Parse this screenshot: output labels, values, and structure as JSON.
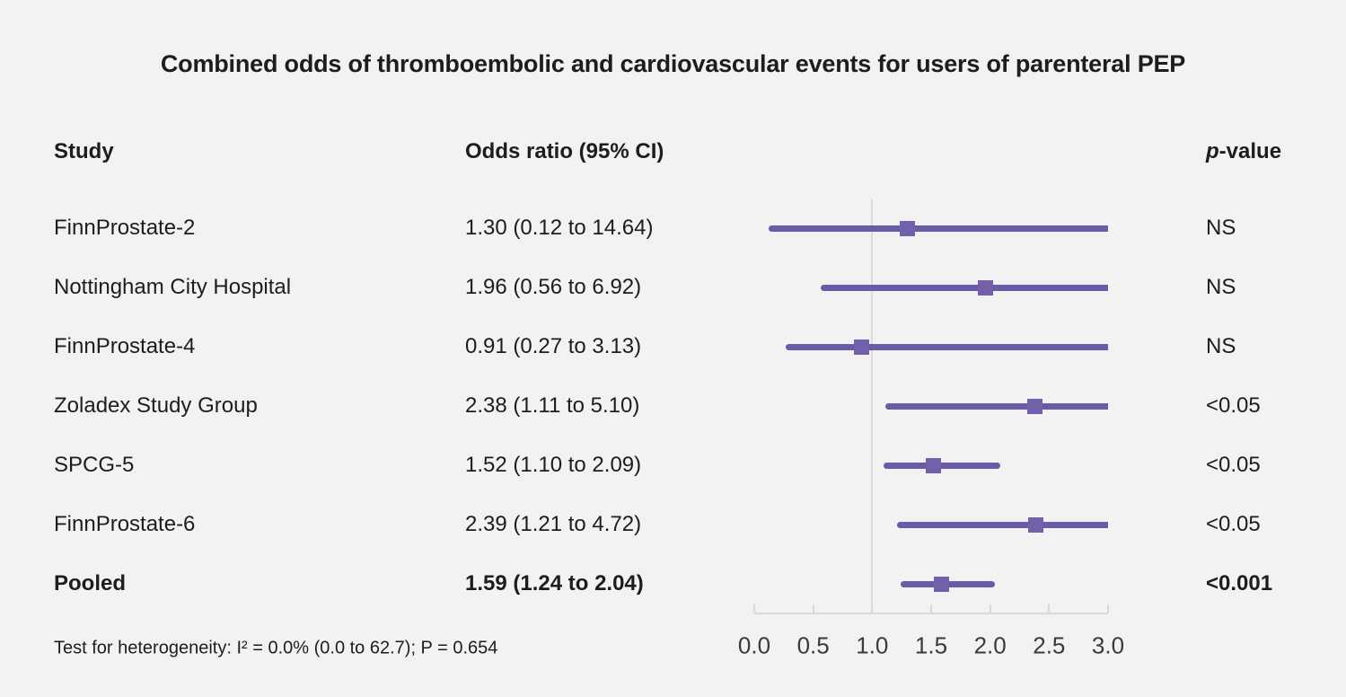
{
  "title": "Combined odds of thromboembolic and cardiovascular events for users of parenteral PEP",
  "columns": {
    "study": "Study",
    "odds_ratio": "Odds ratio (95% CI)",
    "p_prefix": "p",
    "p_suffix": "-value"
  },
  "footnote": "Test for heterogeneity: I² = 0.0% (0.0 to 62.7); P = 0.654",
  "colors": {
    "background": "#f2f2f2",
    "text": "#1d1d1d",
    "ci_line": "#6b5aa5",
    "marker": "#7260ab",
    "axis": "#d9d9d9",
    "reference_line": "#d8dbe0"
  },
  "chart_data": {
    "type": "forest",
    "title": "Combined odds of thromboembolic and cardiovascular events for users of parenteral PEP",
    "xlim": [
      0.0,
      3.0
    ],
    "x_ticks": [
      0.0,
      0.5,
      1.0,
      1.5,
      2.0,
      2.5,
      3.0
    ],
    "x_tick_labels": [
      "0.0",
      "0.5",
      "1.0",
      "1.5",
      "2.0",
      "2.5",
      "3.0"
    ],
    "reference_value": 1.0,
    "legend": "none",
    "grid": "off",
    "rows": [
      {
        "study": "FinnProstate-2",
        "or": 1.3,
        "ci_low": 0.12,
        "ci_high": 14.64,
        "or_label": "1.30 (0.12 to 14.64)",
        "p_value": "NS",
        "bold": false
      },
      {
        "study": "Nottingham City Hospital",
        "or": 1.96,
        "ci_low": 0.56,
        "ci_high": 6.92,
        "or_label": "1.96 (0.56 to 6.92)",
        "p_value": "NS",
        "bold": false
      },
      {
        "study": "FinnProstate-4",
        "or": 0.91,
        "ci_low": 0.27,
        "ci_high": 3.13,
        "or_label": "0.91 (0.27 to 3.13)",
        "p_value": "NS",
        "bold": false
      },
      {
        "study": "Zoladex Study Group",
        "or": 2.38,
        "ci_low": 1.11,
        "ci_high": 5.1,
        "or_label": "2.38 (1.11 to 5.10)",
        "p_value": "<0.05",
        "bold": false
      },
      {
        "study": "SPCG-5",
        "or": 1.52,
        "ci_low": 1.1,
        "ci_high": 2.09,
        "or_label": "1.52 (1.10 to 2.09)",
        "p_value": "<0.05",
        "bold": false
      },
      {
        "study": "FinnProstate-6",
        "or": 2.39,
        "ci_low": 1.21,
        "ci_high": 4.72,
        "or_label": "2.39 (1.21 to 4.72)",
        "p_value": "<0.05",
        "bold": false
      },
      {
        "study": "Pooled",
        "or": 1.59,
        "ci_low": 1.24,
        "ci_high": 2.04,
        "or_label": "1.59 (1.24 to 2.04)",
        "p_value": "<0.001",
        "bold": true
      }
    ]
  }
}
